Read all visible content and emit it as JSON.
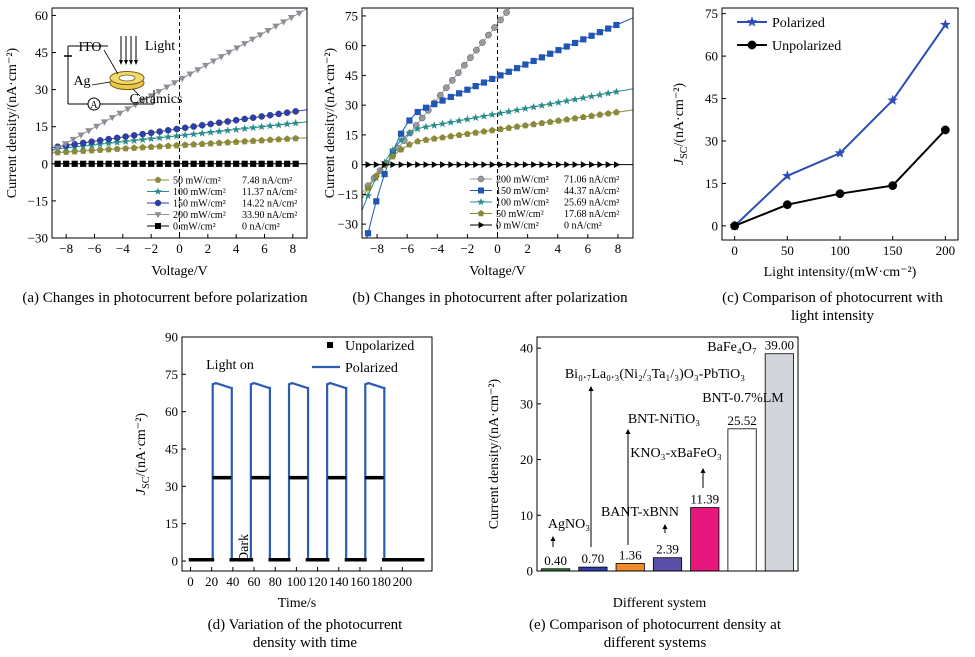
{
  "panels": {
    "a": {
      "caption": "(a) Changes in photocurrent before polarization",
      "xlabel": "Voltage/V",
      "ylabel": "Current density/(nA·cm⁻²)",
      "xlim": [
        -9,
        9
      ],
      "ylim": [
        -30,
        63
      ],
      "xticks": [
        -8,
        -6,
        -4,
        -2,
        0,
        2,
        4,
        6,
        8
      ],
      "yticks": [
        -30,
        -15,
        0,
        15,
        30,
        45,
        60
      ],
      "inset": {
        "ito": "ITO",
        "light": "Light",
        "ag": "Ag",
        "ceramics": "Ceramics",
        "ammeter": "A"
      },
      "series": [
        {
          "name": "50 mW/cm²",
          "value": "7.48 nA/cm²",
          "color": "#8b8a3a",
          "marker": "pentagon",
          "isc": 7.48,
          "slope": 0.34
        },
        {
          "name": "100 mW/cm²",
          "value": "11.37 nA/cm²",
          "color": "#2a8c8c",
          "marker": "star",
          "isc": 11.37,
          "slope": 0.62
        },
        {
          "name": "150 mW/cm²",
          "value": "14.22 nA/cm²",
          "color": "#2b3faf",
          "marker": "circle",
          "isc": 14.22,
          "slope": 0.85
        },
        {
          "name": "200 mW/cm²",
          "value": "33.90 nA/cm²",
          "color": "#8e8e96",
          "marker": "triangle-down",
          "isc": 33.9,
          "slope": 3.2
        },
        {
          "name": "0 mW/cm²",
          "value": "0 nA/cm²",
          "color": "#000000",
          "marker": "square",
          "isc": 0,
          "slope": 0
        }
      ]
    },
    "b": {
      "caption": "(b) Changes in photocurrent after polarization",
      "xlabel": "Voltage/V",
      "ylabel": "Current density/(nA·cm⁻²)",
      "xlim": [
        -9,
        9
      ],
      "ylim": [
        -37,
        79
      ],
      "xticks": [
        -8,
        -6,
        -4,
        -2,
        0,
        2,
        4,
        6,
        8
      ],
      "yticks": [
        -30,
        -15,
        0,
        15,
        30,
        45,
        60,
        75
      ],
      "series": [
        {
          "name": "200 mW/cm²",
          "value": "71.06 nA/cm²",
          "color": "#9a9aa2",
          "marker": "circle",
          "isc": 71.06,
          "slope": 9.5
        },
        {
          "name": "150 mW/cm²",
          "value": "44.37 nA/cm²",
          "color": "#1f55b5",
          "marker": "square",
          "isc": 44.37,
          "slope": 3.3
        },
        {
          "name": "100 mW/cm²",
          "value": "25.69 nA/cm²",
          "color": "#2a8c8c",
          "marker": "star",
          "isc": 25.69,
          "slope": 1.4
        },
        {
          "name": "50 mW/cm²",
          "value": "17.68 nA/cm²",
          "color": "#8b8a3a",
          "marker": "pentagon",
          "isc": 17.68,
          "slope": 1.1
        },
        {
          "name": "0 mW/cm²",
          "value": "0 nA/cm²",
          "color": "#000000",
          "marker": "triangle-right",
          "isc": 0,
          "slope": 0
        }
      ]
    },
    "c": {
      "caption_line1": "(c) Comparison of photocurrent with",
      "caption_line2": "light intensity",
      "xlabel": "Light intensity/(mW·cm⁻²)",
      "ylabel_main": "J",
      "ylabel_sub": "SC",
      "ylabel_rest": "/(nA·cm⁻²)",
      "xlim": [
        -12,
        212
      ],
      "ylim": [
        -5,
        77
      ],
      "xticks": [
        0,
        50,
        100,
        150,
        200
      ],
      "yticks": [
        0,
        15,
        30,
        45,
        60,
        75
      ],
      "x": [
        0,
        50,
        100,
        150,
        200
      ],
      "series": [
        {
          "name": "Polarized",
          "color": "#2b4db8",
          "marker": "star",
          "values": [
            0,
            17.68,
            25.69,
            44.37,
            71.06
          ]
        },
        {
          "name": "Unpolarized",
          "color": "#000000",
          "marker": "circle",
          "values": [
            0,
            7.48,
            11.37,
            14.22,
            33.9
          ]
        }
      ]
    },
    "d": {
      "caption_line1": "(d) Variation of the photocurrent",
      "caption_line2": "density with time",
      "xlabel": "Time/s",
      "ylabel_main": "J",
      "ylabel_sub": "SC",
      "ylabel_rest": "/(nA·cm⁻²)",
      "xlim": [
        -8,
        228
      ],
      "ylim": [
        -4,
        90
      ],
      "xticks": [
        0,
        20,
        40,
        60,
        80,
        100,
        120,
        140,
        160,
        180,
        200
      ],
      "yticks": [
        0,
        15,
        30,
        45,
        60,
        75,
        90
      ],
      "light_on": "Light on",
      "dark": "Dark",
      "cycles": [
        [
          21,
          39
        ],
        [
          57,
          75
        ],
        [
          93,
          111
        ],
        [
          129,
          147
        ],
        [
          165,
          183
        ]
      ],
      "series": [
        {
          "name": "Unpolarized",
          "color": "#000000",
          "marker": "square",
          "on": 33.5,
          "off": 0.5
        },
        {
          "name": "Polarized",
          "color": "#2a5db0",
          "marker": "line",
          "on": 71,
          "off": 0.5
        }
      ]
    },
    "e": {
      "caption_line1": "(e) Comparison of photocurrent density at",
      "caption_line2": "different systems",
      "xlabel": "Different system",
      "ylabel": "Current density/(nA·cm⁻²)",
      "ylim": [
        0,
        42
      ],
      "yticks": [
        0,
        10,
        20,
        30,
        40
      ],
      "bars": [
        {
          "label": "AgNO₃",
          "value": 0.4,
          "value_text": "0.40",
          "color": "#2e7d32"
        },
        {
          "label": "Bi₀.₇La₀.₃(Ni₂/₃Ta₁/₃)O₃-PbTiO₃",
          "value": 0.7,
          "value_text": "0.70",
          "color": "#2b3fae"
        },
        {
          "label": "BNT-NiTiO₃",
          "value": 1.36,
          "value_text": "1.36",
          "color": "#f08a2a"
        },
        {
          "label": "BANT-xBNN",
          "value": 2.39,
          "value_text": "2.39",
          "color": "#5a4fa8"
        },
        {
          "label": "KNO₃-xBaFeO₃",
          "value": 11.39,
          "value_text": "11.39",
          "color": "#e8177d"
        },
        {
          "label": "BNT-0.7%LM",
          "value": 25.52,
          "value_text": "25.52",
          "color": "#ffffff"
        },
        {
          "label": "BaFe₄O₇",
          "value": 39.0,
          "value_text": "39.00",
          "color": "#d2d5db"
        }
      ]
    }
  }
}
